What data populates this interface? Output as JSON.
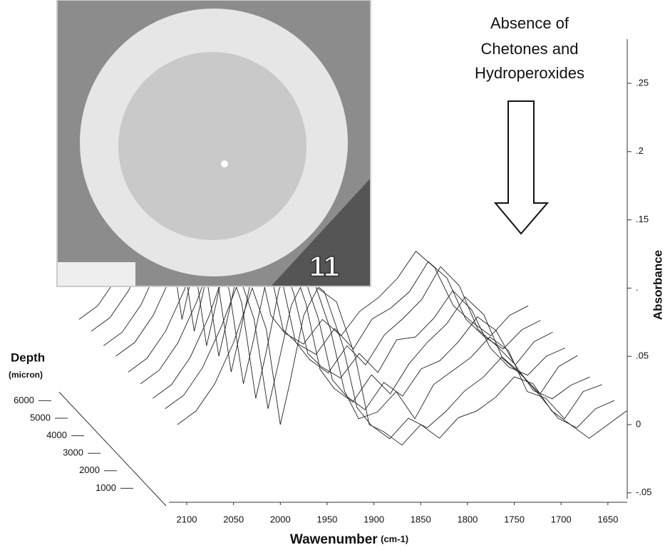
{
  "chart_data": {
    "type": "waterfall",
    "photo_label": "11",
    "annotation": [
      "Absence of",
      "Chetones and",
      "Hydroperoxides"
    ],
    "xlabel": "Wawenumber",
    "xlabel_unit": "(cm-1)",
    "ylabel": "Absorbance",
    "zlabel": "Depth",
    "zlabel_unit": "(micron)",
    "xlim": [
      2120,
      1625
    ],
    "xticks": [
      2100,
      2050,
      2000,
      1950,
      1900,
      1850,
      1800,
      1750,
      1700,
      1650
    ],
    "ylim": [
      -0.06,
      0.28
    ],
    "yticks": [
      {
        "value": -0.05,
        "label": "-.05"
      },
      0,
      {
        "value": 0.05,
        "label": ".05"
      },
      {
        "value": 0.1,
        "label": "."
      },
      {
        "value": 0.15,
        "label": ".15"
      },
      {
        "value": 0.2,
        "label": ".2"
      },
      {
        "value": 0.25,
        "label": ".25"
      }
    ],
    "zlim": [
      0,
      6000
    ],
    "zticks": [
      1000,
      2000,
      3000,
      4000,
      5000,
      6000
    ],
    "color": "#222222",
    "x": [
      2110,
      2090,
      2070,
      2050,
      2030,
      2015,
      2000,
      1990,
      1975,
      1960,
      1940,
      1920,
      1905,
      1890,
      1870,
      1850,
      1830,
      1810,
      1790,
      1770,
      1750,
      1730,
      1710,
      1690,
      1670,
      1650,
      1630
    ],
    "series": [
      {
        "depth": 0,
        "values": [
          0.0,
          0.01,
          0.03,
          0.06,
          0.1,
          0.07,
          0.0,
          0.03,
          0.08,
          0.1,
          0.09,
          0.05,
          0.0,
          -0.005,
          -0.015,
          0.0,
          -0.01,
          0.005,
          0.01,
          0.02,
          0.035,
          0.03,
          0.01,
          0.0,
          -0.01,
          0.0,
          0.01
        ]
      },
      {
        "depth": 750,
        "values": [
          0.002,
          0.012,
          0.032,
          0.062,
          0.098,
          0.068,
          0.002,
          0.032,
          0.078,
          0.098,
          0.088,
          0.048,
          0.003,
          -0.01,
          -0.02,
          -0.005,
          -0.012,
          0.0,
          0.015,
          0.025,
          0.04,
          0.028,
          0.012,
          -0.005,
          -0.012,
          0.002,
          0.008
        ]
      },
      {
        "depth": 1500,
        "values": [
          0.0,
          0.01,
          0.03,
          0.06,
          0.1,
          0.07,
          0.0,
          0.03,
          0.08,
          0.1,
          0.09,
          0.05,
          0.005,
          -0.015,
          -0.01,
          0.005,
          -0.015,
          0.01,
          0.02,
          0.03,
          0.045,
          0.035,
          0.005,
          0.0,
          -0.015,
          0.005,
          0.01
        ]
      },
      {
        "depth": 2250,
        "values": [
          0.001,
          0.011,
          0.031,
          0.061,
          0.099,
          0.069,
          0.001,
          0.031,
          0.079,
          0.099,
          0.089,
          0.049,
          0.004,
          -0.008,
          -0.018,
          0.002,
          -0.008,
          0.012,
          0.018,
          0.032,
          0.05,
          0.04,
          0.015,
          -0.004,
          -0.01,
          0.0,
          0.006
        ]
      },
      {
        "depth": 3000,
        "values": [
          0.0,
          0.01,
          0.03,
          0.06,
          0.1,
          0.07,
          0.0,
          0.03,
          0.08,
          0.1,
          0.09,
          0.05,
          0.002,
          -0.012,
          -0.022,
          -0.002,
          -0.016,
          0.006,
          0.022,
          0.035,
          0.055,
          0.042,
          0.01,
          -0.002,
          -0.016,
          0.004,
          0.012
        ]
      },
      {
        "depth": 3750,
        "values": [
          0.002,
          0.012,
          0.032,
          0.062,
          0.1,
          0.068,
          0.002,
          0.032,
          0.08,
          0.1,
          0.088,
          0.048,
          0.004,
          -0.006,
          -0.014,
          0.004,
          -0.01,
          0.014,
          0.016,
          0.03,
          0.05,
          0.036,
          0.008,
          -0.006,
          -0.012,
          0.002,
          0.008
        ]
      },
      {
        "depth": 4500,
        "values": [
          0.0,
          0.01,
          0.03,
          0.06,
          0.1,
          0.07,
          0.0,
          0.03,
          0.08,
          0.1,
          0.09,
          0.05,
          0.003,
          -0.01,
          -0.02,
          0.0,
          -0.014,
          0.008,
          0.02,
          0.034,
          0.058,
          0.044,
          0.012,
          0.0,
          -0.014,
          0.003,
          0.01
        ]
      },
      {
        "depth": 5250,
        "values": [
          0.001,
          0.011,
          0.031,
          0.061,
          0.099,
          0.069,
          0.001,
          0.031,
          0.079,
          0.099,
          0.089,
          0.049,
          0.002,
          -0.008,
          -0.016,
          0.003,
          -0.012,
          0.01,
          0.018,
          0.03,
          0.052,
          0.04,
          0.01,
          -0.003,
          -0.012,
          0.002,
          0.009
        ]
      },
      {
        "depth": 6000,
        "values": [
          0.0,
          0.01,
          0.03,
          0.06,
          0.1,
          0.07,
          0.0,
          0.03,
          0.08,
          0.1,
          0.09,
          0.05,
          0.003,
          -0.01,
          -0.018,
          0.0,
          -0.012,
          0.006,
          0.016,
          0.03,
          0.05,
          0.038,
          0.01,
          -0.002,
          -0.012,
          0.003,
          0.01
        ]
      }
    ]
  }
}
